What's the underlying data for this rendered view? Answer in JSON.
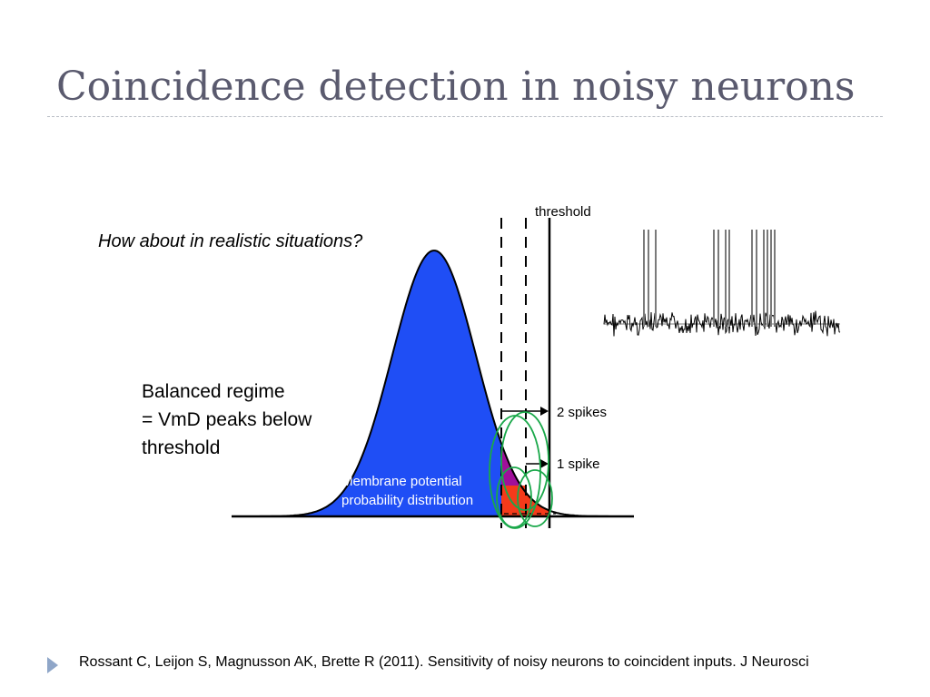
{
  "slide": {
    "title": "Coincidence detection in noisy neurons",
    "question": "How about in realistic situations?",
    "regime_lines": [
      "Balanced regime",
      "= VmD peaks below",
      "threshold"
    ],
    "citation": "Rossant C, Leijon S, Magnusson AK, Brette R (2011). Sensitivity of noisy neurons to coincident inputs. J Neurosci"
  },
  "figure": {
    "threshold_label": "threshold",
    "two_spikes_label": "2 spikes",
    "one_spike_label": "1 spike",
    "distribution_label_lines": [
      "Membrane potential",
      "probability distribution"
    ],
    "colors": {
      "distribution": "#1f4ef5",
      "two_spike_region": "#a0109a",
      "one_spike_region": "#f53a1a",
      "input_circles": "#1aa84a",
      "trace": "#000000"
    },
    "icons": {
      "footer_bullet": "triangle-right-icon"
    }
  }
}
